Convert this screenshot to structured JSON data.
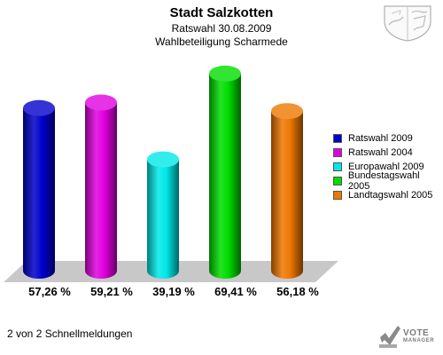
{
  "header": {
    "title": "Stadt Salzkotten",
    "subtitle1": "Ratswahl 30.08.2009",
    "subtitle2": "Wahlbeteiligung Scharmede"
  },
  "footer": {
    "text": "2 von 2 Schnellmeldungen"
  },
  "logo": {
    "line1": "VOTE",
    "line2": "MANAGER"
  },
  "chart_data": {
    "type": "bar",
    "categories": [
      "Ratswahl 2009",
      "Ratswahl 2004",
      "Europawahl 2009",
      "Bundestagswahl 2005",
      "Landtagswahl 2005"
    ],
    "values": [
      57.26,
      59.21,
      39.19,
      69.41,
      56.18
    ],
    "value_labels": [
      "57,26 %",
      "59,21 %",
      "39,19 %",
      "69,41 %",
      "56,18 %"
    ],
    "colors": [
      "#0000cc",
      "#e000e0",
      "#00e8e8",
      "#00dd00",
      "#ee7700"
    ],
    "legend_position": "right",
    "ylim": [
      0,
      75
    ],
    "grid": false
  }
}
